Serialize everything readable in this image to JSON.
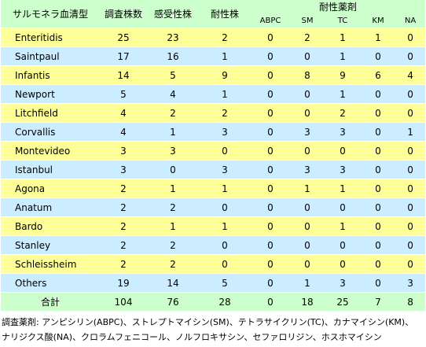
{
  "table": {
    "header": {
      "serotype": "サルモネラ血清型",
      "count": "調査株数",
      "susceptible": "感受性株",
      "resistant": "耐性株",
      "drugs_label": "耐性薬剤",
      "drugs": [
        "ABPC",
        "SM",
        "TC",
        "KM",
        "NA"
      ]
    },
    "rows": [
      [
        "Enteritidis",
        25,
        23,
        2,
        0,
        2,
        1,
        1,
        0
      ],
      [
        "Saintpaul",
        17,
        16,
        1,
        0,
        0,
        1,
        0,
        0
      ],
      [
        "Infantis",
        14,
        5,
        9,
        0,
        8,
        9,
        6,
        4
      ],
      [
        "Newport",
        5,
        4,
        1,
        0,
        0,
        1,
        0,
        0
      ],
      [
        "Litchfield",
        4,
        2,
        2,
        0,
        0,
        2,
        0,
        0
      ],
      [
        "Corvallis",
        4,
        1,
        3,
        0,
        3,
        3,
        0,
        1
      ],
      [
        "Montevideo",
        3,
        3,
        0,
        0,
        0,
        0,
        0,
        0
      ],
      [
        "Istanbul",
        3,
        0,
        3,
        0,
        3,
        3,
        0,
        0
      ],
      [
        "Agona",
        2,
        1,
        1,
        0,
        1,
        1,
        0,
        0
      ],
      [
        "Anatum",
        2,
        2,
        0,
        0,
        0,
        0,
        0,
        0
      ],
      [
        "Bardo",
        2,
        1,
        1,
        0,
        0,
        1,
        0,
        0
      ],
      [
        "Stanley",
        2,
        2,
        0,
        0,
        0,
        0,
        0,
        0
      ],
      [
        "Schleissheim",
        2,
        2,
        0,
        0,
        0,
        0,
        0,
        0
      ],
      [
        "Others",
        19,
        14,
        5,
        0,
        1,
        3,
        0,
        3
      ]
    ],
    "total": [
      "合計",
      104,
      76,
      28,
      0,
      18,
      25,
      7,
      8
    ]
  },
  "footnote": [
    "調査薬剤: アンピシリン(ABPC)、ストレプトマイシン(SM)、テトラサイクリン(TC)、カナマイシン(KM)、",
    "ナリジクス酸(NA)、クロラムフェニコール、ノルフロキサシン、セファロリジン、ホスホマイシン"
  ]
}
